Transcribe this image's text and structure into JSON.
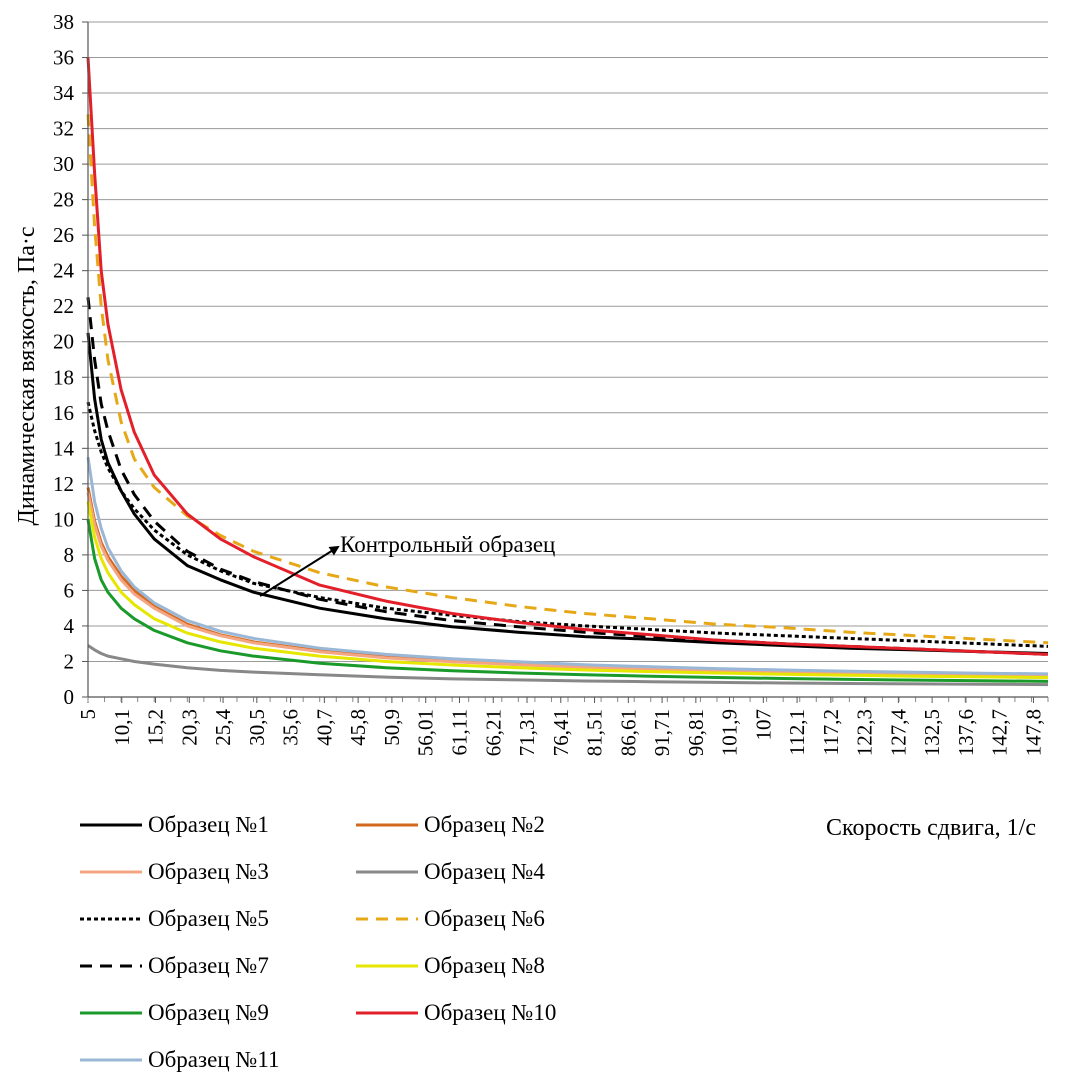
{
  "chart_data": {
    "type": "line",
    "xlabel": "Скорость сдвига, 1/с",
    "ylabel": "Динамическая вязкость, Па·с",
    "ylim": [
      0,
      38
    ],
    "yticks": [
      "0",
      "2",
      "4",
      "6",
      "8",
      "10",
      "12",
      "14",
      "16",
      "18",
      "20",
      "22",
      "24",
      "26",
      "28",
      "30",
      "32",
      "34",
      "36",
      "38"
    ],
    "xtick_labels": [
      "5",
      "10,1",
      "15,2",
      "20,3",
      "25,4",
      "30,5",
      "35,6",
      "40,7",
      "45,8",
      "50,9",
      "56,01",
      "61,11",
      "66,21",
      "71,31",
      "76,41",
      "81,51",
      "86,61",
      "91,71",
      "96,81",
      "101,9",
      "107",
      "112,1",
      "117,2",
      "122,3",
      "127,4",
      "132,5",
      "137,6",
      "142,7",
      "147,8"
    ],
    "xlim": [
      5,
      150
    ],
    "grid": "horizontal",
    "legend_position": "bottom",
    "annotation": {
      "text": "Контрольный образец"
    },
    "series": [
      {
        "name": "Образец №1",
        "color": "#000000",
        "dash": "solid",
        "x": [
          5,
          6,
          7,
          8,
          10,
          12,
          15,
          20,
          25,
          30,
          40,
          50,
          60,
          70,
          80,
          90,
          100,
          110,
          120,
          130,
          140,
          150
        ],
        "y": [
          20.5,
          16.8,
          14.5,
          13.2,
          11.6,
          10.3,
          8.9,
          7.4,
          6.6,
          5.9,
          5.0,
          4.4,
          3.95,
          3.65,
          3.4,
          3.25,
          3.05,
          2.9,
          2.75,
          2.65,
          2.55,
          2.45
        ]
      },
      {
        "name": "Образец №2",
        "color": "#d2691e",
        "dash": "solid",
        "x": [
          5,
          6,
          7,
          8,
          10,
          12,
          15,
          20,
          25,
          30,
          40,
          50,
          60,
          70,
          80,
          90,
          100,
          110,
          120,
          130,
          140,
          150
        ],
        "y": [
          11.8,
          9.9,
          8.7,
          7.9,
          6.8,
          6.0,
          5.1,
          4.1,
          3.5,
          3.1,
          2.6,
          2.25,
          2.0,
          1.85,
          1.7,
          1.6,
          1.5,
          1.42,
          1.35,
          1.3,
          1.25,
          1.2
        ]
      },
      {
        "name": "Образец №3",
        "color": "#f4a582",
        "dash": "solid",
        "x": [
          5,
          6,
          7,
          8,
          10,
          12,
          15,
          20,
          25,
          30,
          40,
          50,
          60,
          70,
          80,
          90,
          100,
          110,
          120,
          130,
          140,
          150
        ],
        "y": [
          11.5,
          9.7,
          8.5,
          7.7,
          6.6,
          5.8,
          5.0,
          4.0,
          3.45,
          3.05,
          2.55,
          2.2,
          1.98,
          1.82,
          1.68,
          1.58,
          1.48,
          1.4,
          1.33,
          1.28,
          1.23,
          1.18
        ]
      },
      {
        "name": "Образец №4",
        "color": "#888888",
        "dash": "solid",
        "x": [
          5,
          6,
          7,
          8,
          10,
          12,
          15,
          20,
          25,
          30,
          40,
          50,
          60,
          70,
          80,
          90,
          100,
          110,
          120,
          130,
          140,
          150
        ],
        "y": [
          2.9,
          2.65,
          2.45,
          2.3,
          2.15,
          2.0,
          1.85,
          1.65,
          1.5,
          1.4,
          1.25,
          1.12,
          1.02,
          0.96,
          0.9,
          0.86,
          0.82,
          0.79,
          0.76,
          0.74,
          0.72,
          0.7
        ]
      },
      {
        "name": "Образец №5",
        "color": "#000000",
        "dash": "dotted",
        "x": [
          5,
          6,
          7,
          8,
          10,
          12,
          15,
          20,
          25,
          30,
          40,
          50,
          60,
          70,
          80,
          90,
          100,
          110,
          120,
          130,
          140,
          150
        ],
        "y": [
          16.6,
          15.0,
          13.8,
          12.9,
          11.6,
          10.6,
          9.4,
          8.0,
          7.1,
          6.4,
          5.6,
          5.0,
          4.6,
          4.25,
          4.0,
          3.8,
          3.6,
          3.45,
          3.3,
          3.15,
          3.0,
          2.85
        ]
      },
      {
        "name": "Образец №6",
        "color": "#e6a817",
        "dash": "dashed",
        "x": [
          5,
          6,
          7,
          8,
          10,
          12,
          15,
          20,
          25,
          30,
          40,
          50,
          60,
          70,
          80,
          90,
          100,
          110,
          120,
          130,
          140,
          150
        ],
        "y": [
          32.8,
          26.5,
          22.0,
          19.0,
          15.5,
          13.4,
          11.8,
          10.2,
          9.1,
          8.2,
          7.0,
          6.2,
          5.6,
          5.1,
          4.7,
          4.4,
          4.1,
          3.9,
          3.65,
          3.45,
          3.25,
          3.05
        ]
      },
      {
        "name": "Образец №7",
        "color": "#000000",
        "dash": "dashed",
        "x": [
          5,
          6,
          7,
          8,
          10,
          12,
          15,
          20,
          25,
          30,
          40,
          50,
          60,
          70,
          80,
          90,
          100,
          110,
          120,
          130,
          140,
          150
        ],
        "y": [
          22.5,
          19.0,
          16.5,
          15.0,
          12.8,
          11.4,
          9.9,
          8.2,
          7.2,
          6.5,
          5.5,
          4.8,
          4.3,
          3.95,
          3.65,
          3.4,
          3.2,
          3.0,
          2.85,
          2.7,
          2.55,
          2.4
        ]
      },
      {
        "name": "Образец №8",
        "color": "#e6e600",
        "dash": "solid",
        "x": [
          5,
          6,
          7,
          8,
          10,
          12,
          15,
          20,
          25,
          30,
          40,
          50,
          60,
          70,
          80,
          90,
          100,
          110,
          120,
          130,
          140,
          150
        ],
        "y": [
          11.0,
          9.0,
          7.8,
          7.0,
          5.9,
          5.2,
          4.4,
          3.6,
          3.1,
          2.75,
          2.3,
          2.0,
          1.8,
          1.65,
          1.52,
          1.43,
          1.35,
          1.28,
          1.22,
          1.17,
          1.13,
          1.09
        ]
      },
      {
        "name": "Образец №9",
        "color": "#1a9a2a",
        "dash": "solid",
        "x": [
          5,
          6,
          7,
          8,
          10,
          12,
          15,
          20,
          25,
          30,
          40,
          50,
          60,
          70,
          80,
          90,
          100,
          110,
          120,
          130,
          140,
          150
        ],
        "y": [
          10.0,
          7.8,
          6.6,
          5.9,
          5.0,
          4.4,
          3.75,
          3.05,
          2.6,
          2.3,
          1.9,
          1.65,
          1.48,
          1.35,
          1.25,
          1.17,
          1.1,
          1.04,
          0.99,
          0.95,
          0.92,
          0.88
        ]
      },
      {
        "name": "Образец №10",
        "color": "#e3202a",
        "dash": "solid",
        "x": [
          5,
          6,
          7,
          8,
          10,
          12,
          15,
          20,
          25,
          30,
          40,
          50,
          60,
          70,
          80,
          90,
          100,
          110,
          120,
          130,
          140,
          150
        ],
        "y": [
          36.0,
          29.5,
          24.0,
          21.0,
          17.3,
          14.9,
          12.5,
          10.3,
          8.9,
          7.9,
          6.3,
          5.4,
          4.7,
          4.2,
          3.8,
          3.5,
          3.2,
          3.0,
          2.85,
          2.7,
          2.55,
          2.4
        ]
      },
      {
        "name": "Образец №11",
        "color": "#9ab7d6",
        "dash": "solid",
        "x": [
          5,
          6,
          7,
          8,
          10,
          12,
          15,
          20,
          25,
          30,
          40,
          50,
          60,
          70,
          80,
          90,
          100,
          110,
          120,
          130,
          140,
          150
        ],
        "y": [
          13.5,
          11.0,
          9.5,
          8.4,
          7.1,
          6.2,
          5.3,
          4.3,
          3.7,
          3.3,
          2.75,
          2.4,
          2.15,
          1.98,
          1.82,
          1.7,
          1.6,
          1.52,
          1.45,
          1.39,
          1.34,
          1.3
        ]
      }
    ]
  }
}
